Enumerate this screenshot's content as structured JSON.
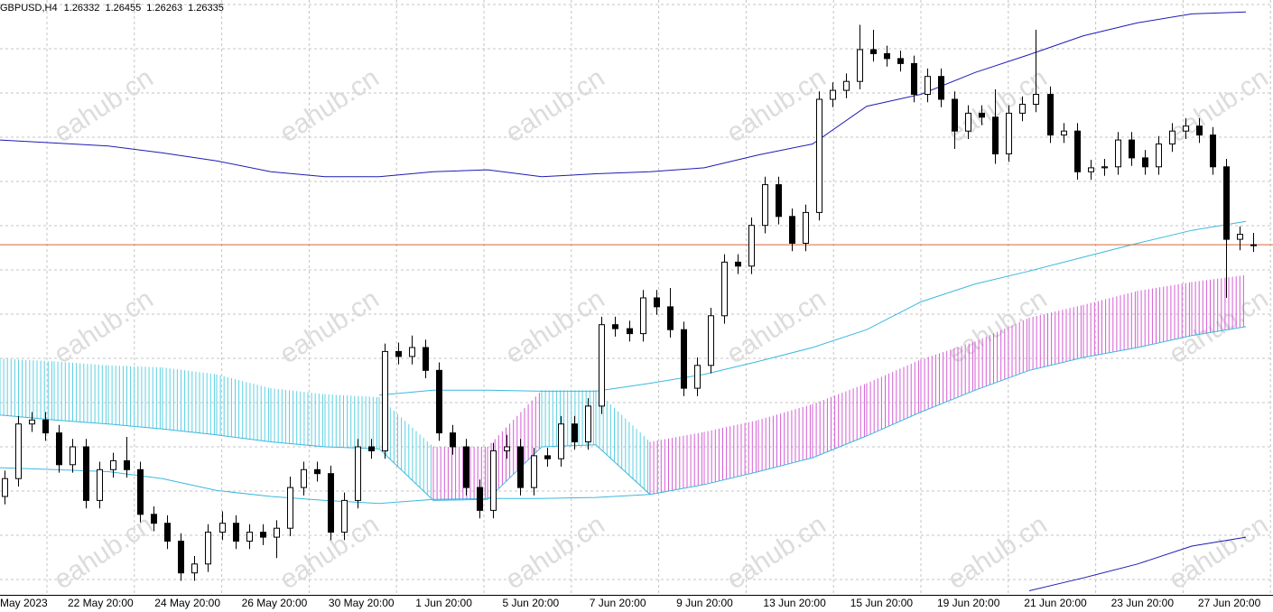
{
  "chart_data": {
    "type": "candlestick",
    "symbol": "GBPUSD,H4",
    "ohlc": [
      1.26332,
      1.26455,
      1.26263,
      1.26335
    ],
    "ylim": [
      1.228,
      1.288
    ],
    "grid": true,
    "up_color": "#ffffff",
    "down_color": "#000000",
    "bid_color": "#d9663a",
    "candles": [
      [
        1.238,
        1.2406,
        1.2372,
        1.2398
      ],
      [
        1.2398,
        1.2461,
        1.239,
        1.2453
      ],
      [
        1.2453,
        1.2465,
        1.2445,
        1.2457
      ],
      [
        1.2457,
        1.2465,
        1.2436,
        1.2444
      ],
      [
        1.2444,
        1.2452,
        1.2404,
        1.2412
      ],
      [
        1.2412,
        1.2438,
        1.2404,
        1.243
      ],
      [
        1.243,
        1.2438,
        1.2368,
        1.2376
      ],
      [
        1.2376,
        1.2415,
        1.2368,
        1.2407
      ],
      [
        1.2407,
        1.2424,
        1.2399,
        1.2416
      ],
      [
        1.2416,
        1.244,
        1.2399,
        1.2407
      ],
      [
        1.2407,
        1.2415,
        1.2354,
        1.2362
      ],
      [
        1.2362,
        1.237,
        1.2345,
        1.2353
      ],
      [
        1.2353,
        1.2361,
        1.2327,
        1.2335
      ],
      [
        1.2335,
        1.2343,
        1.2295,
        1.2303
      ],
      [
        1.2303,
        1.232,
        1.2295,
        1.2312
      ],
      [
        1.2312,
        1.2352,
        1.2304,
        1.2344
      ],
      [
        1.2344,
        1.2365,
        1.2336,
        1.2353
      ],
      [
        1.2353,
        1.2361,
        1.2327,
        1.2335
      ],
      [
        1.2335,
        1.2352,
        1.2327,
        1.2344
      ],
      [
        1.2344,
        1.2352,
        1.2331,
        1.2339
      ],
      [
        1.2339,
        1.2356,
        1.2318,
        1.2348
      ],
      [
        1.2348,
        1.24,
        1.234,
        1.2389
      ],
      [
        1.2389,
        1.2415,
        1.2381,
        1.2407
      ],
      [
        1.2407,
        1.2415,
        1.2395,
        1.2403
      ],
      [
        1.2403,
        1.2411,
        1.2336,
        1.2344
      ],
      [
        1.2344,
        1.2384,
        1.2336,
        1.2376
      ],
      [
        1.2376,
        1.2438,
        1.2368,
        1.243
      ],
      [
        1.243,
        1.2438,
        1.2418,
        1.2426
      ],
      [
        1.2426,
        1.2534,
        1.2418,
        1.2526
      ],
      [
        1.2526,
        1.2535,
        1.2513,
        1.2521
      ],
      [
        1.2521,
        1.2542,
        1.2513,
        1.253
      ],
      [
        1.253,
        1.2538,
        1.2499,
        1.2507
      ],
      [
        1.2507,
        1.2515,
        1.2436,
        1.2444
      ],
      [
        1.2444,
        1.2452,
        1.2422,
        1.243
      ],
      [
        1.243,
        1.2438,
        1.2381,
        1.2389
      ],
      [
        1.2389,
        1.2397,
        1.2358,
        1.2366
      ],
      [
        1.2366,
        1.2434,
        1.2358,
        1.2426
      ],
      [
        1.2426,
        1.2442,
        1.2418,
        1.243
      ],
      [
        1.243,
        1.2438,
        1.2381,
        1.2389
      ],
      [
        1.2389,
        1.2429,
        1.2381,
        1.2421
      ],
      [
        1.2421,
        1.2429,
        1.241,
        1.2418
      ],
      [
        1.2418,
        1.2461,
        1.241,
        1.2453
      ],
      [
        1.2453,
        1.2461,
        1.2427,
        1.2435
      ],
      [
        1.2435,
        1.2479,
        1.2427,
        1.2471
      ],
      [
        1.2471,
        1.2561,
        1.2463,
        1.2553
      ],
      [
        1.2553,
        1.2561,
        1.2541,
        1.2549
      ],
      [
        1.2549,
        1.2557,
        1.2536,
        1.2544
      ],
      [
        1.2544,
        1.2588,
        1.2536,
        1.258
      ],
      [
        1.258,
        1.2588,
        1.2563,
        1.2571
      ],
      [
        1.2571,
        1.259,
        1.254,
        1.2548
      ],
      [
        1.2548,
        1.2556,
        1.2481,
        1.2489
      ],
      [
        1.2489,
        1.252,
        1.2481,
        1.2512
      ],
      [
        1.2512,
        1.257,
        1.2504,
        1.2562
      ],
      [
        1.2562,
        1.2624,
        1.2554,
        1.2616
      ],
      [
        1.2616,
        1.2624,
        1.2604,
        1.2612
      ],
      [
        1.2612,
        1.2661,
        1.2604,
        1.2653
      ],
      [
        1.2653,
        1.2702,
        1.2645,
        1.2694
      ],
      [
        1.2694,
        1.2702,
        1.2654,
        1.2662
      ],
      [
        1.2662,
        1.267,
        1.2627,
        1.2635
      ],
      [
        1.2635,
        1.2674,
        1.2627,
        1.2666
      ],
      [
        1.2666,
        1.2788,
        1.2658,
        1.278
      ],
      [
        1.278,
        1.2797,
        1.2772,
        1.2789
      ],
      [
        1.2789,
        1.2806,
        1.2781,
        1.2798
      ],
      [
        1.2798,
        1.2855,
        1.279,
        1.283
      ],
      [
        1.283,
        1.285,
        1.2818,
        1.2826
      ],
      [
        1.2826,
        1.2834,
        1.2813,
        1.2821
      ],
      [
        1.2821,
        1.2829,
        1.2808,
        1.2816
      ],
      [
        1.2816,
        1.2824,
        1.2777,
        1.2785
      ],
      [
        1.2785,
        1.2811,
        1.2777,
        1.2803
      ],
      [
        1.2803,
        1.2811,
        1.2772,
        1.278
      ],
      [
        1.278,
        1.2788,
        1.273,
        1.2748
      ],
      [
        1.2748,
        1.2774,
        1.274,
        1.2766
      ],
      [
        1.2766,
        1.2774,
        1.2754,
        1.2762
      ],
      [
        1.2762,
        1.279,
        1.2715,
        1.2725
      ],
      [
        1.2725,
        1.2774,
        1.2717,
        1.2766
      ],
      [
        1.2766,
        1.2783,
        1.2758,
        1.2775
      ],
      [
        1.2775,
        1.285,
        1.2767,
        1.2785
      ],
      [
        1.2785,
        1.2793,
        1.2736,
        1.2744
      ],
      [
        1.2744,
        1.2756,
        1.2736,
        1.2748
      ],
      [
        1.2748,
        1.2756,
        1.2699,
        1.2707
      ],
      [
        1.2707,
        1.2719,
        1.2699,
        1.2711
      ],
      [
        1.2711,
        1.272,
        1.2703,
        1.2712
      ],
      [
        1.2712,
        1.2747,
        1.2704,
        1.2739
      ],
      [
        1.2739,
        1.2747,
        1.2713,
        1.2721
      ],
      [
        1.2721,
        1.2729,
        1.2704,
        1.2712
      ],
      [
        1.2712,
        1.2743,
        1.2704,
        1.2735
      ],
      [
        1.2735,
        1.2756,
        1.2727,
        1.2748
      ],
      [
        1.2748,
        1.2761,
        1.274,
        1.2753
      ],
      [
        1.2753,
        1.2761,
        1.2736,
        1.2744
      ],
      [
        1.2744,
        1.2752,
        1.2704,
        1.2712
      ],
      [
        1.2712,
        1.272,
        1.258,
        1.2639
      ],
      [
        1.2639,
        1.2652,
        1.2628,
        1.2644
      ],
      [
        1.26332,
        1.26455,
        1.26263,
        1.26335
      ]
    ],
    "lines": [
      {
        "color": "#1c1cb4",
        "values": [
          1.2739,
          1.2736,
          1.2733,
          1.2726,
          1.2718,
          1.2707,
          1.2702,
          1.2702,
          1.2707,
          1.2709,
          1.2702,
          1.2705,
          1.2707,
          1.2711,
          1.2724,
          1.2735,
          1.2773,
          1.2785,
          1.2807,
          1.2825,
          1.2844,
          1.2857,
          1.2866,
          1.2868
        ]
      },
      {
        "color": "#1c1cb4",
        "values": [
          null,
          null,
          null,
          null,
          null,
          null,
          null,
          null,
          null,
          null,
          null,
          null,
          null,
          null,
          null,
          null,
          null,
          null,
          null,
          1.2285,
          1.2298,
          1.2312,
          1.233,
          1.2339
        ]
      },
      {
        "color": "#3cb8e0",
        "values": [
          null,
          null,
          null,
          null,
          null,
          null,
          null,
          1.2482,
          1.2487,
          1.2487,
          1.2486,
          1.2486,
          1.2494,
          1.2503,
          1.2516,
          1.253,
          1.2548,
          1.2576,
          1.2594,
          1.2607,
          1.2621,
          1.2635,
          1.2648,
          1.2657
        ]
      },
      {
        "color": "#3cb8e0",
        "values": [
          1.2409,
          1.2407,
          1.2405,
          1.2398,
          1.2386,
          1.238,
          1.2376,
          1.2373,
          1.2377,
          1.2378,
          1.2378,
          1.2379,
          1.2382,
          null,
          null,
          null,
          null,
          null,
          null,
          null,
          null,
          null,
          null,
          null
        ]
      }
    ],
    "cloud": {
      "edge_color": "#3cb8e0",
      "upper": [
        1.2519,
        1.2516,
        1.2512,
        1.251,
        1.2503,
        1.2489,
        1.2483,
        1.248,
        1.243,
        1.243,
        1.2487,
        1.2487,
        1.2435,
        1.2445,
        1.2457,
        1.2473,
        1.2494,
        1.2518,
        1.2536,
        1.256,
        1.2573,
        1.2587,
        1.2596,
        1.2603
      ],
      "lower": [
        1.2462,
        1.2457,
        1.2453,
        1.2448,
        1.2442,
        1.2435,
        1.243,
        1.2428,
        1.2376,
        1.2377,
        1.243,
        1.2432,
        1.2382,
        1.2392,
        1.2405,
        1.2419,
        1.2441,
        1.2465,
        1.2487,
        1.2507,
        1.252,
        1.253,
        1.2542,
        1.2551
      ],
      "colors": [
        "#5cd0e2",
        "#5cd0e2",
        "#5cd0e2",
        "#5cd0e2",
        "#5cd0e2",
        "#5cd0e2",
        "#5cd0e2",
        "#5cd0e2",
        "#d45cd4",
        "#d45cd4",
        "#5cd0e2",
        "#5cd0e2",
        "#d45cd4",
        "#d45cd4",
        "#d45cd4",
        "#d45cd4",
        "#d45cd4",
        "#d45cd4",
        "#d45cd4",
        "#d45cd4",
        "#d45cd4",
        "#d45cd4",
        "#d45cd4",
        "#d45cd4"
      ]
    },
    "time_labels": [
      "May 2023",
      "22 May 20:00",
      "24 May 20:00",
      "26 May 20:00",
      "30 May 20:00",
      "1 Jun 20:00",
      "5 Jun 20:00",
      "7 Jun 20:00",
      "9 Jun 20:00",
      "13 Jun 20:00",
      "15 Jun 20:00",
      "19 Jun 20:00",
      "21 Jun 20:00",
      "23 Jun 20:00",
      "27 Jun 20:00"
    ],
    "watermark": "eahub.cn"
  }
}
